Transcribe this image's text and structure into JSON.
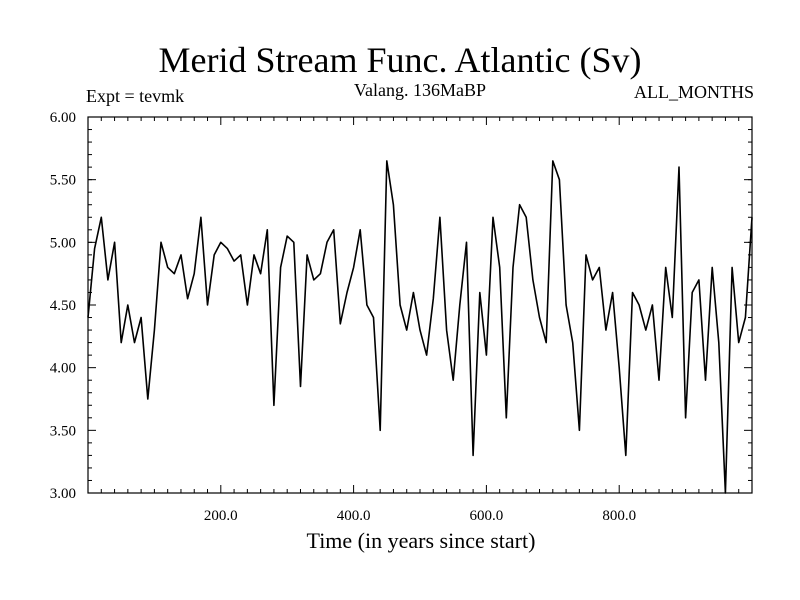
{
  "title": "Merid Stream Func. Atlantic (Sv)",
  "expt_label": "Expt = tevmk",
  "subtitle": "Valang. 136MaBP",
  "months_label": "ALL_MONTHS",
  "colors": {
    "line": "#000000",
    "background": "#ffffff"
  },
  "chart_data": {
    "type": "line",
    "title": "Merid Stream Func. Atlantic (Sv)",
    "xlabel": "Time (in years since start)",
    "ylabel": "",
    "xlim": [
      0,
      1000
    ],
    "ylim": [
      3.0,
      6.0
    ],
    "x_ticks": [
      200,
      400,
      600,
      800
    ],
    "x_tick_labels": [
      "200.0",
      "400.0",
      "600.0",
      "800.0"
    ],
    "y_ticks": [
      3.0,
      3.5,
      4.0,
      4.5,
      5.0,
      5.5,
      6.0
    ],
    "y_tick_labels": [
      "3.00",
      "3.50",
      "4.00",
      "4.50",
      "5.00",
      "5.50",
      "6.00"
    ],
    "grid": false,
    "series": [
      {
        "x": [
          0,
          10,
          20,
          30,
          40,
          50,
          60,
          70,
          80,
          90,
          100,
          110,
          120,
          130,
          140,
          150,
          160,
          170,
          180,
          190,
          200,
          210,
          220,
          230,
          240,
          250,
          260,
          270,
          280,
          290,
          300,
          310,
          320,
          330,
          340,
          350,
          360,
          370,
          380,
          390,
          400,
          410,
          420,
          430,
          440,
          450,
          460,
          470,
          480,
          490,
          500,
          510,
          520,
          530,
          540,
          550,
          560,
          570,
          580,
          590,
          600,
          610,
          620,
          630,
          640,
          650,
          660,
          670,
          680,
          690,
          700,
          710,
          720,
          730,
          740,
          750,
          760,
          770,
          780,
          790,
          800,
          810,
          820,
          830,
          840,
          850,
          860,
          870,
          880,
          890,
          900,
          910,
          920,
          930,
          940,
          950,
          960,
          970,
          980,
          990,
          1000
        ],
        "values": [
          4.4,
          4.95,
          5.2,
          4.7,
          5.0,
          4.2,
          4.5,
          4.2,
          4.4,
          3.75,
          4.3,
          5.0,
          4.8,
          4.75,
          4.9,
          4.55,
          4.75,
          5.2,
          4.5,
          4.9,
          5.0,
          4.95,
          4.85,
          4.9,
          4.5,
          4.9,
          4.75,
          5.1,
          3.7,
          4.8,
          5.05,
          5.0,
          3.85,
          4.9,
          4.7,
          4.75,
          5.0,
          5.1,
          4.35,
          4.6,
          4.8,
          5.1,
          4.5,
          4.4,
          3.5,
          5.65,
          5.3,
          4.5,
          4.3,
          4.6,
          4.3,
          4.1,
          4.55,
          5.2,
          4.3,
          3.9,
          4.5,
          5.0,
          3.3,
          4.6,
          4.1,
          5.2,
          4.8,
          3.6,
          4.8,
          5.3,
          5.2,
          4.7,
          4.4,
          4.2,
          5.65,
          5.5,
          4.5,
          4.2,
          3.5,
          4.9,
          4.7,
          4.8,
          4.3,
          4.6,
          4.0,
          3.3,
          4.6,
          4.5,
          4.3,
          4.5,
          3.9,
          4.8,
          4.4,
          5.6,
          3.6,
          4.6,
          4.7,
          3.9,
          4.8,
          4.2,
          3.0,
          4.8,
          4.2,
          4.4,
          5.2
        ]
      }
    ]
  }
}
